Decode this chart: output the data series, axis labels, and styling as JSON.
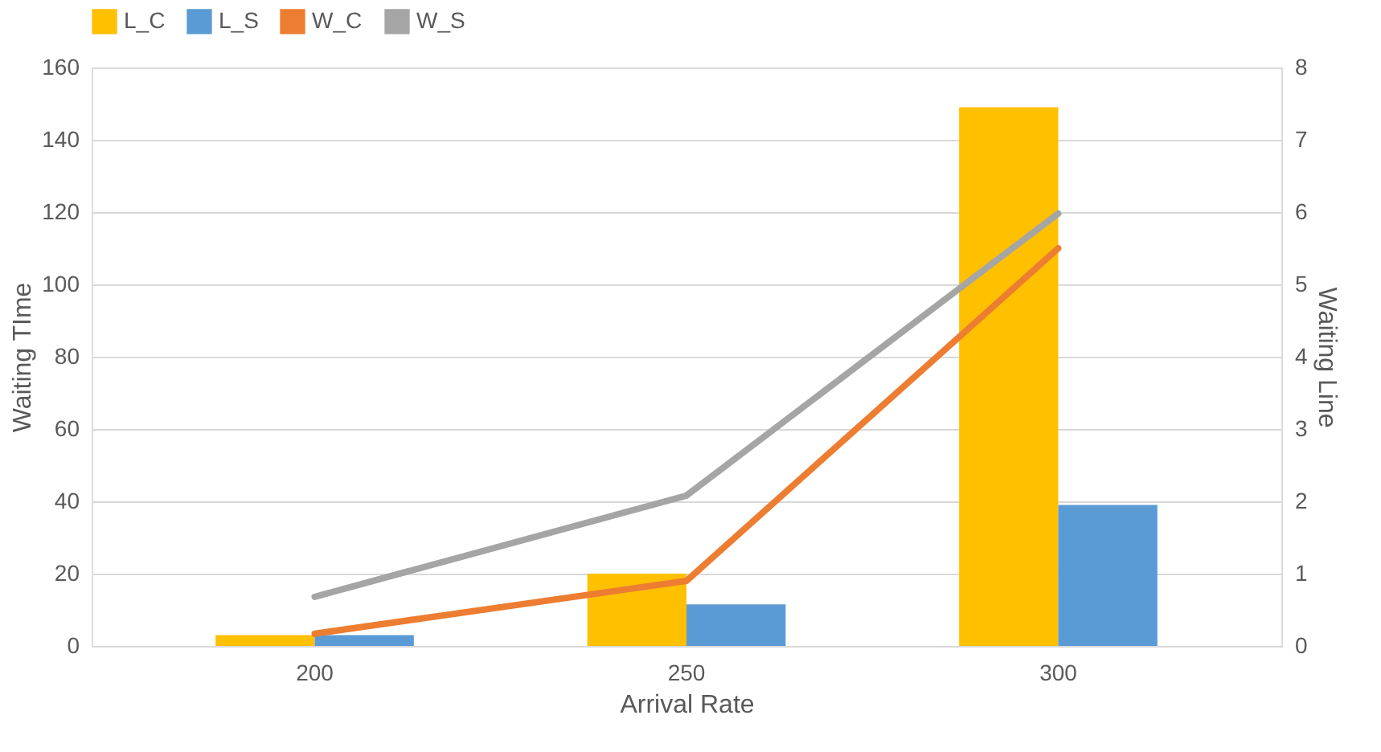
{
  "chart_data": {
    "type": "bar",
    "xlabel": "Arrival Rate",
    "ylabel": "Waiting TIme",
    "y2label": "Waiting Line",
    "categories": [
      "200",
      "250",
      "300"
    ],
    "series": [
      {
        "name": "L_C",
        "color": "#ffc000",
        "values": [
          3,
          20,
          149
        ]
      },
      {
        "name": "L_S",
        "color": "#5b9bd5",
        "values": [
          3,
          11.5,
          39
        ]
      },
      {
        "name": "W_C",
        "color": "#ed7d31",
        "type": "line",
        "axis": "y2",
        "values": [
          0.17,
          0.9,
          5.5
        ]
      },
      {
        "name": "W_S",
        "color": "#a5a5a5",
        "type": "line",
        "axis": "y2",
        "values": [
          0.68,
          2.08,
          5.98
        ]
      }
    ],
    "ylim": [
      0,
      160
    ],
    "yticks": [
      0,
      20,
      40,
      60,
      80,
      100,
      120,
      140,
      160
    ],
    "y2lim": [
      0,
      8
    ],
    "y2ticks": [
      0,
      1,
      2,
      3,
      4,
      5,
      6,
      7,
      8
    ],
    "grid": "y",
    "legend": "top",
    "marker": "none",
    "line_style": "solid"
  }
}
